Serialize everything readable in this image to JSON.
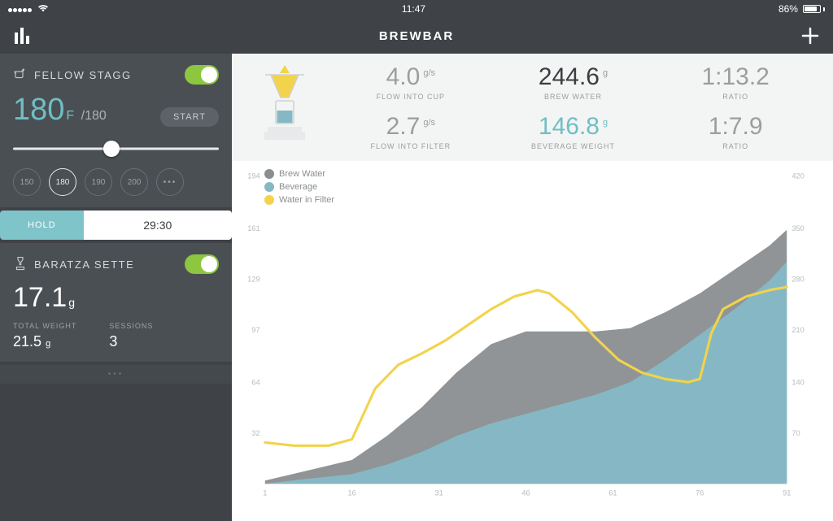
{
  "status": {
    "time": "11:47",
    "battery_pct": "86%",
    "battery_fill_pct": 86
  },
  "nav": {
    "title": "BREWBAR"
  },
  "kettle": {
    "name": "FELLOW STAGG",
    "on": true,
    "temp_current": "180",
    "temp_unit": "F",
    "temp_target": "180",
    "start_label": "START",
    "slider_pct": 48,
    "presets": [
      "150",
      "180",
      "190",
      "200"
    ],
    "preset_active_idx": 1,
    "preset_more": "•••",
    "hold_label": "HOLD",
    "hold_time": "29:30"
  },
  "grinder": {
    "name": "BARATZA SETTE",
    "on": true,
    "weight": "17.1",
    "weight_unit": "g",
    "total_weight_label": "TOTAL WEIGHT",
    "total_weight": "21.5",
    "total_weight_unit": "g",
    "sessions_label": "SESSIONS",
    "sessions": "3"
  },
  "metrics": {
    "flow_cup": {
      "value": "4.0",
      "unit": "g/s",
      "label": "FLOW INTO CUP"
    },
    "brew_water": {
      "value": "244.6",
      "unit": "g",
      "label": "BREW WATER"
    },
    "ratio_top": {
      "value": "1:13.2",
      "unit": "",
      "label": "RATIO"
    },
    "flow_filter": {
      "value": "2.7",
      "unit": "g/s",
      "label": "FLOW INTO FILTER"
    },
    "bev_weight": {
      "value": "146.8",
      "unit": "g",
      "label": "BEVERAGE WEIGHT"
    },
    "ratio_bot": {
      "value": "1:7.9",
      "unit": "",
      "label": "RATIO"
    }
  },
  "chart": {
    "legend": [
      {
        "label": "Brew Water",
        "color": "#8a8e90"
      },
      {
        "label": "Beverage",
        "color": "#85b8c4"
      },
      {
        "label": "Water in Filter",
        "color": "#f2d34b"
      }
    ],
    "xlim": [
      1,
      91
    ],
    "ylim_left": [
      0,
      194
    ],
    "ylim_right": [
      0,
      420
    ],
    "xtick_labels": [
      "1",
      "16",
      "31",
      "46",
      "61",
      "76",
      "91"
    ],
    "xtick_positions": [
      1,
      16,
      31,
      46,
      61,
      76,
      91
    ],
    "ytick_left": [
      32,
      64,
      97,
      129,
      161,
      194
    ],
    "ytick_right": [
      70,
      140,
      210,
      280,
      350,
      420
    ],
    "background_color": "#ffffff",
    "axis_color": "#e2e3e4",
    "tick_label_color": "#b8bbbc",
    "series": {
      "brew_water_area": {
        "color": "#8a8e90",
        "points": [
          [
            1,
            2
          ],
          [
            8,
            8
          ],
          [
            16,
            15
          ],
          [
            22,
            30
          ],
          [
            28,
            48
          ],
          [
            34,
            70
          ],
          [
            40,
            88
          ],
          [
            46,
            96
          ],
          [
            52,
            96
          ],
          [
            58,
            96
          ],
          [
            64,
            98
          ],
          [
            70,
            108
          ],
          [
            76,
            120
          ],
          [
            82,
            135
          ],
          [
            88,
            150
          ],
          [
            91,
            160
          ]
        ]
      },
      "beverage_area": {
        "color": "#85b8c4",
        "points": [
          [
            1,
            0
          ],
          [
            8,
            3
          ],
          [
            16,
            6
          ],
          [
            22,
            12
          ],
          [
            28,
            20
          ],
          [
            34,
            30
          ],
          [
            40,
            38
          ],
          [
            46,
            44
          ],
          [
            52,
            50
          ],
          [
            58,
            56
          ],
          [
            64,
            64
          ],
          [
            70,
            78
          ],
          [
            76,
            94
          ],
          [
            82,
            110
          ],
          [
            88,
            128
          ],
          [
            91,
            140
          ]
        ]
      },
      "water_in_filter_line": {
        "color": "#f2d34b",
        "width": 3,
        "points": [
          [
            1,
            26
          ],
          [
            6,
            24
          ],
          [
            12,
            24
          ],
          [
            16,
            28
          ],
          [
            20,
            60
          ],
          [
            24,
            75
          ],
          [
            28,
            82
          ],
          [
            32,
            90
          ],
          [
            36,
            100
          ],
          [
            40,
            110
          ],
          [
            44,
            118
          ],
          [
            48,
            122
          ],
          [
            50,
            120
          ],
          [
            54,
            108
          ],
          [
            58,
            92
          ],
          [
            62,
            78
          ],
          [
            66,
            70
          ],
          [
            70,
            66
          ],
          [
            74,
            64
          ],
          [
            76,
            66
          ],
          [
            78,
            95
          ],
          [
            80,
            110
          ],
          [
            84,
            118
          ],
          [
            88,
            122
          ],
          [
            91,
            124
          ]
        ]
      }
    }
  },
  "colors": {
    "bg_dark": "#3f4348",
    "panel": "#4a4f54",
    "teal": "#6fbfc4",
    "teal_light": "#7ec4c9",
    "toggle_green": "#8dc63f",
    "yellow": "#f2d34b",
    "grey_area": "#8a8e90",
    "blue_area": "#85b8c4"
  }
}
